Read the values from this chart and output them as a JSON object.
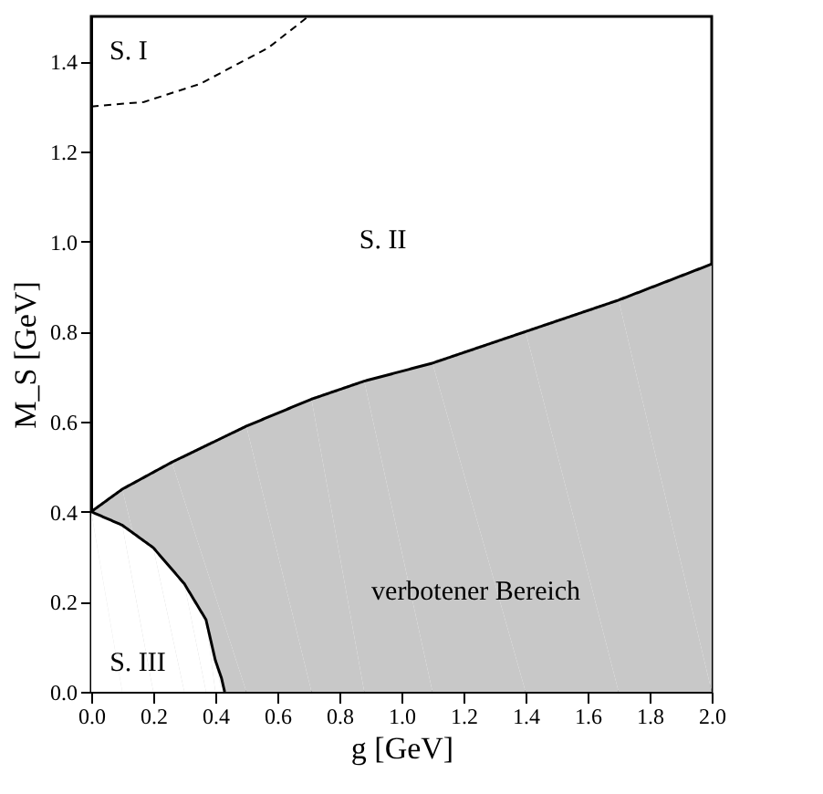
{
  "chart_data": {
    "type": "line",
    "xlabel": "g [GeV]",
    "ylabel": "M_S [GeV]",
    "xlim": [
      0,
      2
    ],
    "ylim": [
      0,
      1.5
    ],
    "xticks": [
      {
        "value": 0,
        "label": "0.0"
      },
      0.2,
      0.4,
      0.6,
      0.8,
      {
        "value": 1,
        "label": "1.0"
      },
      1.2,
      1.4,
      1.6,
      1.8,
      {
        "value": 2,
        "label": "2.0"
      }
    ],
    "yticks": [
      {
        "value": 0,
        "label": "0.0"
      },
      0.2,
      0.4,
      0.6,
      0.8,
      {
        "value": 1,
        "label": "1.0"
      },
      1.2,
      1.4
    ],
    "grid": false,
    "series": [
      {
        "type": "area",
        "color": "#c8c8c8",
        "x": [
          0,
          0.1,
          0.26,
          0.5,
          0.71,
          0.88,
          1.1,
          1.4,
          1.7,
          2.0
        ],
        "values": [
          0.4,
          0.45,
          0.51,
          0.59,
          0.65,
          0.69,
          0.73,
          0.8,
          0.87,
          0.95
        ]
      },
      {
        "type": "area",
        "color": "#ffffff",
        "x": [
          0,
          0.1,
          0.2,
          0.3,
          0.37,
          0.4,
          0.42,
          0.43
        ],
        "values": [
          0.4,
          0.37,
          0.32,
          0.24,
          0.16,
          0.07,
          0.03,
          0
        ]
      },
      {
        "color": "#000000",
        "line_style": "dashed",
        "x": [
          0,
          0.17,
          0.35,
          0.57,
          0.7
        ],
        "values": [
          1.3,
          1.31,
          1.35,
          1.43,
          1.5
        ]
      }
    ],
    "annotations": [
      "S. I",
      "S. II",
      "S. III",
      "verbotener Bereich"
    ]
  }
}
